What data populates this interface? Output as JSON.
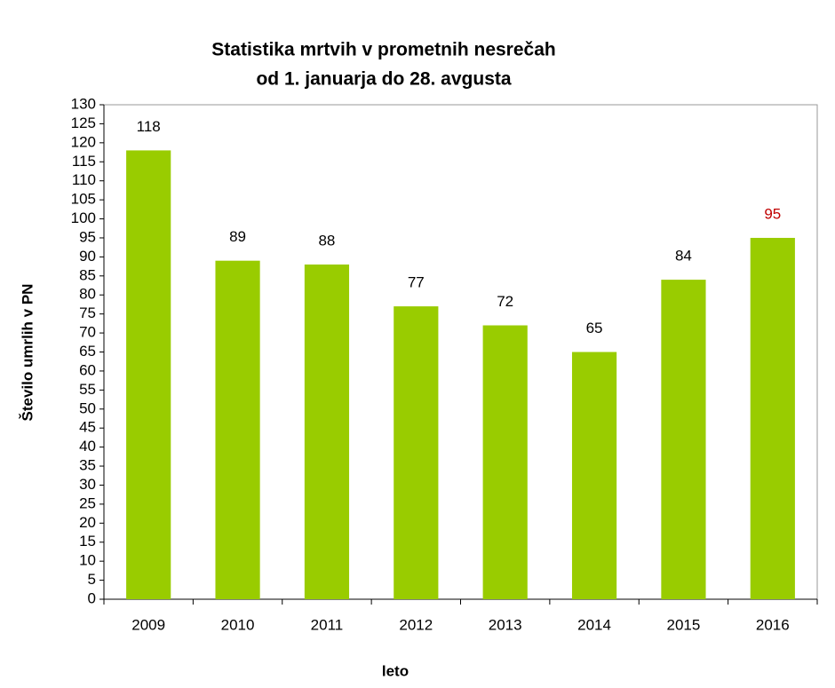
{
  "chart_data": {
    "type": "bar",
    "title": [
      "Statistika mrtvih v prometnih nesrečah",
      "od 1. januarja do 28. avgusta"
    ],
    "x_label": "leto",
    "y_label": "Število umrlih v PN",
    "categories": [
      "2009",
      "2010",
      "2011",
      "2012",
      "2013",
      "2014",
      "2015",
      "2016"
    ],
    "values": [
      118,
      89,
      88,
      77,
      72,
      65,
      84,
      95
    ],
    "color": "#99cc00",
    "value_label_colors": [
      "#000000",
      "#000000",
      "#000000",
      "#000000",
      "#000000",
      "#000000",
      "#000000",
      "#c00000"
    ],
    "ylim": [
      0,
      130
    ],
    "yticks": [
      0,
      5,
      10,
      15,
      20,
      25,
      30,
      35,
      40,
      45,
      50,
      55,
      60,
      65,
      70,
      75,
      80,
      85,
      90,
      95,
      100,
      105,
      110,
      115,
      120,
      125,
      130
    ],
    "grid": false
  }
}
